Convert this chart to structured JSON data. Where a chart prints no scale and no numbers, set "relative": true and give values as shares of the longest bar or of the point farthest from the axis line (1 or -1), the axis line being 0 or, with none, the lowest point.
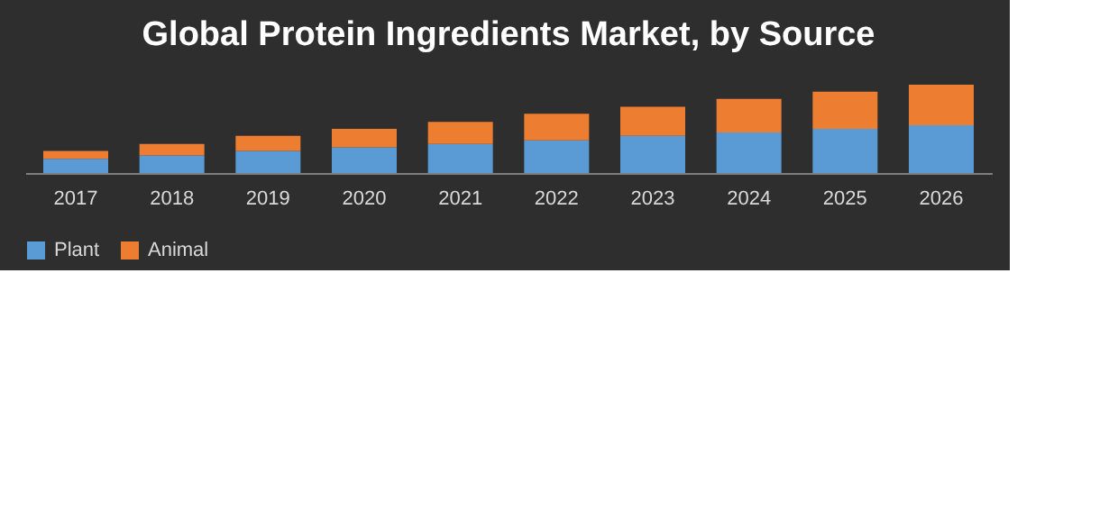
{
  "chart_data": {
    "type": "bar",
    "title": "Global Protein Ingredients Market, by Source",
    "categories": [
      "2017",
      "2018",
      "2019",
      "2020",
      "2021",
      "2022",
      "2023",
      "2024",
      "2025",
      "2026"
    ],
    "series": [
      {
        "name": "Plant",
        "color": "#5b9bd5",
        "values": [
          0.16,
          0.2,
          0.25,
          0.29,
          0.33,
          0.37,
          0.42,
          0.46,
          0.5,
          0.54
        ]
      },
      {
        "name": "Animal",
        "color": "#ed7d31",
        "values": [
          0.09,
          0.13,
          0.17,
          0.21,
          0.25,
          0.3,
          0.33,
          0.38,
          0.42,
          0.46
        ]
      }
    ],
    "stacked": true,
    "relative": true,
    "legend": "bottom",
    "grid": false
  }
}
